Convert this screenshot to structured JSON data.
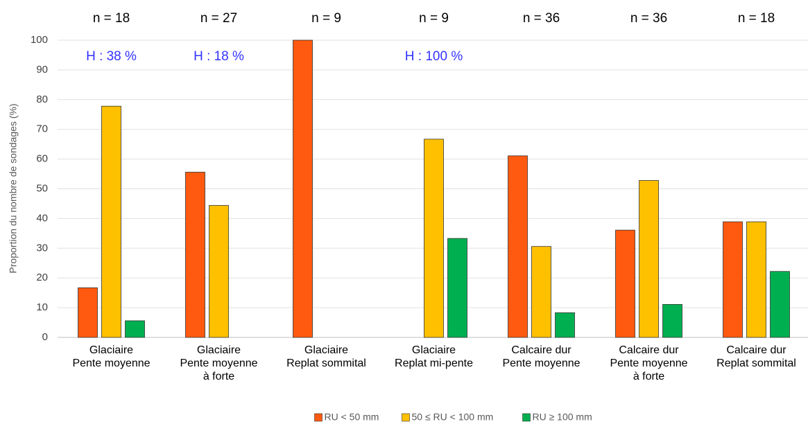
{
  "chart_data": {
    "type": "bar",
    "y_label": "Proportion du nombre de sondages (%)",
    "categories": [
      [
        "Glaciaire",
        "Pente moyenne"
      ],
      [
        "Glaciaire",
        "Pente moyenne",
        "à forte"
      ],
      [
        "Glaciaire",
        "Replat sommital"
      ],
      [
        "Glaciaire",
        "Replat mi-pente"
      ],
      [
        "Calcaire dur",
        "Pente moyenne"
      ],
      [
        "Calcaire dur",
        "Pente moyenne",
        "à forte"
      ],
      [
        "Calcaire dur",
        "Replat sommital"
      ]
    ],
    "n_labels": [
      "n = 18",
      "n = 27",
      "n = 9",
      "n = 9",
      "n = 36",
      "n = 36",
      "n = 18"
    ],
    "h_labels": [
      "H : 38 %",
      "H : 18 %",
      null,
      "H : 100 %",
      null,
      null,
      null
    ],
    "series": [
      {
        "name": "RU < 50 mm",
        "color": "#ff5a0f",
        "values": [
          16.7,
          55.6,
          100,
          0,
          61.1,
          36.1,
          38.9
        ]
      },
      {
        "name": "50 ≤ RU < 100 mm",
        "color": "#ffc000",
        "values": [
          77.8,
          44.4,
          0,
          66.7,
          30.6,
          52.8,
          38.9
        ]
      },
      {
        "name": "RU ≥ 100 mm",
        "color": "#00b050",
        "values": [
          5.6,
          0,
          0,
          33.3,
          8.3,
          11.1,
          22.2
        ]
      }
    ],
    "ylim": [
      0,
      100
    ],
    "yticks": [
      0,
      10,
      20,
      30,
      40,
      50,
      60,
      70,
      80,
      90,
      100
    ],
    "grid": true,
    "legend": "bottom"
  }
}
